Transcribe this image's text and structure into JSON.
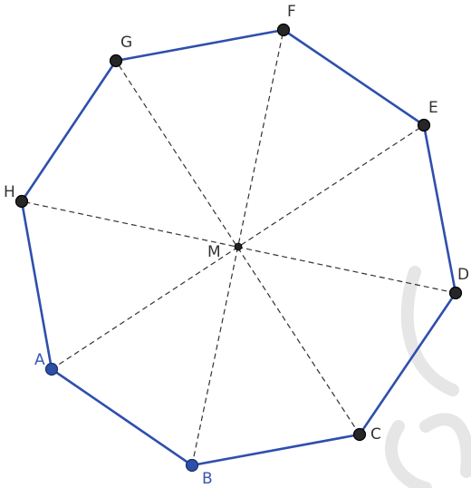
{
  "diagram": {
    "center": {
      "label": "M"
    },
    "points": [
      {
        "id": "A",
        "label": "A",
        "style": "free"
      },
      {
        "id": "B",
        "label": "B",
        "style": "free"
      },
      {
        "id": "C",
        "label": "C",
        "style": "dependent"
      },
      {
        "id": "D",
        "label": "D",
        "style": "dependent"
      },
      {
        "id": "E",
        "label": "E",
        "style": "dependent"
      },
      {
        "id": "F",
        "label": "F",
        "style": "dependent"
      },
      {
        "id": "G",
        "label": "G",
        "style": "dependent"
      },
      {
        "id": "H",
        "label": "H",
        "style": "dependent"
      }
    ],
    "edges": [
      [
        "A",
        "B"
      ],
      [
        "B",
        "C"
      ],
      [
        "C",
        "D"
      ],
      [
        "D",
        "E"
      ],
      [
        "E",
        "F"
      ],
      [
        "F",
        "G"
      ],
      [
        "G",
        "H"
      ],
      [
        "H",
        "A"
      ]
    ],
    "diagonals": [
      [
        "A",
        "E"
      ],
      [
        "B",
        "F"
      ],
      [
        "C",
        "G"
      ],
      [
        "D",
        "H"
      ]
    ]
  },
  "colors": {
    "edge": "#2f4fae",
    "free_point_fill": "#2c4fa8",
    "free_point_stroke": "#1a2f66",
    "dependent_point_fill": "#262626",
    "dependent_point_stroke": "#000000",
    "free_label": "#3a55b0",
    "dependent_label": "#333333",
    "center_point": "#222222"
  }
}
